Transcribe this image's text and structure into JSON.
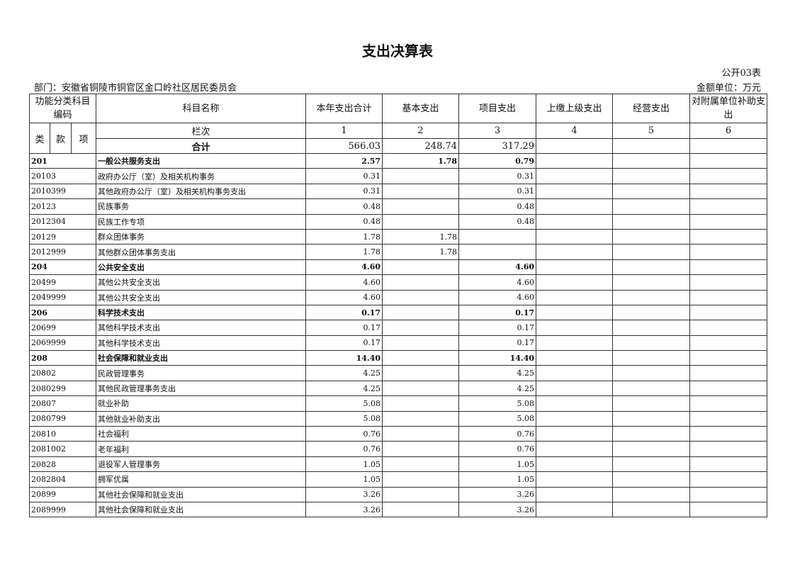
{
  "title": "支出决算表",
  "form_no": "公开03表",
  "department": "部门：安徽省铜陵市铜官区金口岭社区居民委员会",
  "unit": "金额单位：万元",
  "headers": {
    "code": "功能分类科目编码",
    "name": "科目名称",
    "total": "本年支出合计",
    "basic": "基本支出",
    "project": "项目支出",
    "upper": "上缴上级支出",
    "business": "经营支出",
    "subsidy": "对附属单位补助支出",
    "lei": "类",
    "kuan": "款",
    "xiang": "项",
    "column_label": "栏次",
    "col_nums": [
      "1",
      "2",
      "3",
      "4",
      "5",
      "6"
    ]
  },
  "total_row": {
    "label": "合计",
    "total": "566.03",
    "basic": "248.74",
    "project": "317.29"
  },
  "rows": [
    {
      "code": "201",
      "name": "一般公共服务支出",
      "total": "2.57",
      "basic": "1.78",
      "project": "0.79",
      "bold": true
    },
    {
      "code": "20103",
      "name": "政府办公厅（室）及相关机构事务",
      "total": "0.31",
      "basic": "",
      "project": "0.31"
    },
    {
      "code": "2010399",
      "name": "其他政府办公厅（室）及相关机构事务支出",
      "total": "0.31",
      "basic": "",
      "project": "0.31"
    },
    {
      "code": "20123",
      "name": "民族事务",
      "total": "0.48",
      "basic": "",
      "project": "0.48"
    },
    {
      "code": "2012304",
      "name": "民族工作专项",
      "total": "0.48",
      "basic": "",
      "project": "0.48"
    },
    {
      "code": "20129",
      "name": "群众团体事务",
      "total": "1.78",
      "basic": "1.78",
      "project": ""
    },
    {
      "code": "2012999",
      "name": "其他群众团体事务支出",
      "total": "1.78",
      "basic": "1.78",
      "project": ""
    },
    {
      "code": "204",
      "name": "公共安全支出",
      "total": "4.60",
      "basic": "",
      "project": "4.60",
      "bold": true
    },
    {
      "code": "20499",
      "name": "其他公共安全支出",
      "total": "4.60",
      "basic": "",
      "project": "4.60"
    },
    {
      "code": "2049999",
      "name": "其他公共安全支出",
      "total": "4.60",
      "basic": "",
      "project": "4.60"
    },
    {
      "code": "206",
      "name": "科学技术支出",
      "total": "0.17",
      "basic": "",
      "project": "0.17",
      "bold": true
    },
    {
      "code": "20699",
      "name": "其他科学技术支出",
      "total": "0.17",
      "basic": "",
      "project": "0.17"
    },
    {
      "code": "2069999",
      "name": "其他科学技术支出",
      "total": "0.17",
      "basic": "",
      "project": "0.17"
    },
    {
      "code": "208",
      "name": "社会保障和就业支出",
      "total": "14.40",
      "basic": "",
      "project": "14.40",
      "bold": true
    },
    {
      "code": "20802",
      "name": "民政管理事务",
      "total": "4.25",
      "basic": "",
      "project": "4.25"
    },
    {
      "code": "2080299",
      "name": "其他民政管理事务支出",
      "total": "4.25",
      "basic": "",
      "project": "4.25"
    },
    {
      "code": "20807",
      "name": "就业补助",
      "total": "5.08",
      "basic": "",
      "project": "5.08"
    },
    {
      "code": "2080799",
      "name": "其他就业补助支出",
      "total": "5.08",
      "basic": "",
      "project": "5.08"
    },
    {
      "code": "20810",
      "name": "社会福利",
      "total": "0.76",
      "basic": "",
      "project": "0.76"
    },
    {
      "code": "2081002",
      "name": "老年福利",
      "total": "0.76",
      "basic": "",
      "project": "0.76"
    },
    {
      "code": "20828",
      "name": "退役军人管理事务",
      "total": "1.05",
      "basic": "",
      "project": "1.05"
    },
    {
      "code": "2082804",
      "name": "拥军优属",
      "total": "1.05",
      "basic": "",
      "project": "1.05"
    },
    {
      "code": "20899",
      "name": "其他社会保障和就业支出",
      "total": "3.26",
      "basic": "",
      "project": "3.26"
    },
    {
      "code": "2089999",
      "name": "其他社会保障和就业支出",
      "total": "3.26",
      "basic": "",
      "project": "3.26"
    }
  ]
}
